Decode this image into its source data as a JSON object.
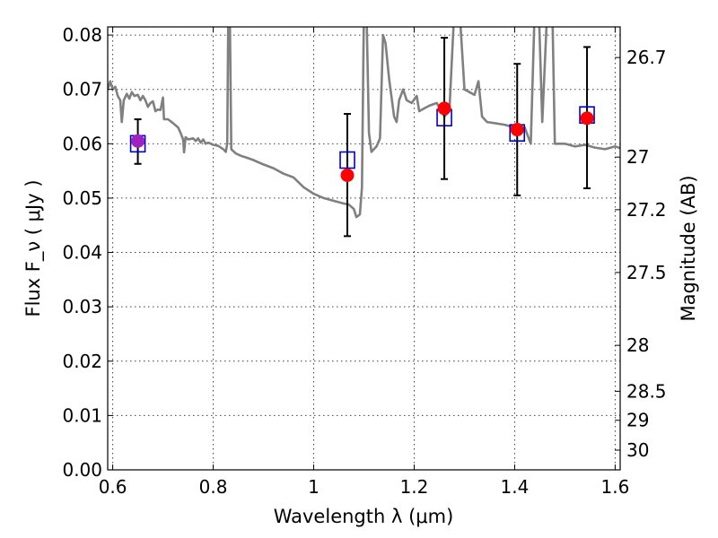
{
  "chart_data": {
    "type": "scatter",
    "title": "",
    "xlabel": "Wavelength λ (μm)",
    "ylabel": "Flux F_ν ( μJy )",
    "y2label": "Magnitude (AB)",
    "xlim": [
      0.59,
      1.61
    ],
    "ylim": [
      0.0,
      0.0815
    ],
    "grid": true,
    "x_ticks": [
      {
        "value": 0.6,
        "label": "0.6"
      },
      {
        "value": 0.8,
        "label": "0.8"
      },
      {
        "value": 1.0,
        "label": "1"
      },
      {
        "value": 1.2,
        "label": "1.2"
      },
      {
        "value": 1.4,
        "label": "1.4"
      },
      {
        "value": 1.6,
        "label": "1.6"
      }
    ],
    "y_ticks": [
      {
        "value": 0.0,
        "label": "0.00"
      },
      {
        "value": 0.01,
        "label": "0.01"
      },
      {
        "value": 0.02,
        "label": "0.02"
      },
      {
        "value": 0.03,
        "label": "0.03"
      },
      {
        "value": 0.04,
        "label": "0.04"
      },
      {
        "value": 0.05,
        "label": "0.05"
      },
      {
        "value": 0.06,
        "label": "0.06"
      },
      {
        "value": 0.07,
        "label": "0.07"
      },
      {
        "value": 0.08,
        "label": "0.08"
      }
    ],
    "mag_ticks": [
      {
        "value": 26.7,
        "label": "26.7"
      },
      {
        "value": 27.0,
        "label": "27"
      },
      {
        "value": 27.2,
        "label": "27.2"
      },
      {
        "value": 27.5,
        "label": "27.5"
      },
      {
        "value": 28.0,
        "label": "28"
      },
      {
        "value": 28.5,
        "label": "28.5"
      },
      {
        "value": 29.0,
        "label": "29"
      },
      {
        "value": 30.0,
        "label": "30"
      }
    ],
    "spectrum": {
      "color": "#808080",
      "points": [
        [
          0.59,
          0.07
        ],
        [
          0.595,
          0.0715
        ],
        [
          0.6,
          0.07
        ],
        [
          0.605,
          0.0705
        ],
        [
          0.61,
          0.0688
        ],
        [
          0.615,
          0.068
        ],
        [
          0.618,
          0.064
        ],
        [
          0.622,
          0.068
        ],
        [
          0.628,
          0.0692
        ],
        [
          0.633,
          0.0683
        ],
        [
          0.638,
          0.0695
        ],
        [
          0.643,
          0.0688
        ],
        [
          0.65,
          0.069
        ],
        [
          0.655,
          0.068
        ],
        [
          0.66,
          0.0688
        ],
        [
          0.665,
          0.068
        ],
        [
          0.67,
          0.0668
        ],
        [
          0.675,
          0.0675
        ],
        [
          0.68,
          0.0678
        ],
        [
          0.685,
          0.066
        ],
        [
          0.69,
          0.0663
        ],
        [
          0.695,
          0.0662
        ],
        [
          0.7,
          0.0685
        ],
        [
          0.702,
          0.0645
        ],
        [
          0.71,
          0.0645
        ],
        [
          0.72,
          0.0638
        ],
        [
          0.73,
          0.063
        ],
        [
          0.735,
          0.062
        ],
        [
          0.74,
          0.0608
        ],
        [
          0.742,
          0.0584
        ],
        [
          0.745,
          0.0612
        ],
        [
          0.75,
          0.0608
        ],
        [
          0.76,
          0.061
        ],
        [
          0.765,
          0.0605
        ],
        [
          0.77,
          0.061
        ],
        [
          0.775,
          0.0602
        ],
        [
          0.78,
          0.0608
        ],
        [
          0.785,
          0.06
        ],
        [
          0.79,
          0.0602
        ],
        [
          0.8,
          0.0598
        ],
        [
          0.81,
          0.0596
        ],
        [
          0.82,
          0.059
        ],
        [
          0.825,
          0.0585
        ],
        [
          0.828,
          0.06
        ],
        [
          0.83,
          0.085
        ],
        [
          0.833,
          0.085
        ],
        [
          0.836,
          0.059
        ],
        [
          0.845,
          0.0582
        ],
        [
          0.855,
          0.0578
        ],
        [
          0.865,
          0.0575
        ],
        [
          0.88,
          0.057
        ],
        [
          0.9,
          0.0562
        ],
        [
          0.92,
          0.0555
        ],
        [
          0.94,
          0.0545
        ],
        [
          0.96,
          0.0538
        ],
        [
          0.98,
          0.052
        ],
        [
          1.0,
          0.0508
        ],
        [
          1.02,
          0.05
        ],
        [
          1.04,
          0.0495
        ],
        [
          1.06,
          0.049
        ],
        [
          1.07,
          0.0488
        ],
        [
          1.08,
          0.048
        ],
        [
          1.085,
          0.0465
        ],
        [
          1.092,
          0.047
        ],
        [
          1.096,
          0.052
        ],
        [
          1.1,
          0.085
        ],
        [
          1.105,
          0.085
        ],
        [
          1.11,
          0.062
        ],
        [
          1.115,
          0.0585
        ],
        [
          1.125,
          0.0595
        ],
        [
          1.132,
          0.061
        ],
        [
          1.138,
          0.08
        ],
        [
          1.143,
          0.0785
        ],
        [
          1.15,
          0.072
        ],
        [
          1.16,
          0.065
        ],
        [
          1.165,
          0.064
        ],
        [
          1.17,
          0.068
        ],
        [
          1.178,
          0.07
        ],
        [
          1.185,
          0.068
        ],
        [
          1.195,
          0.0675
        ],
        [
          1.205,
          0.0688
        ],
        [
          1.21,
          0.066
        ],
        [
          1.22,
          0.0665
        ],
        [
          1.23,
          0.067
        ],
        [
          1.245,
          0.0675
        ],
        [
          1.26,
          0.065
        ],
        [
          1.27,
          0.066
        ],
        [
          1.28,
          0.085
        ],
        [
          1.29,
          0.085
        ],
        [
          1.3,
          0.07
        ],
        [
          1.32,
          0.069
        ],
        [
          1.328,
          0.0715
        ],
        [
          1.335,
          0.065
        ],
        [
          1.345,
          0.064
        ],
        [
          1.36,
          0.0638
        ],
        [
          1.38,
          0.0635
        ],
        [
          1.4,
          0.063
        ],
        [
          1.41,
          0.0625
        ],
        [
          1.42,
          0.063
        ],
        [
          1.432,
          0.06
        ],
        [
          1.44,
          0.085
        ],
        [
          1.448,
          0.085
        ],
        [
          1.455,
          0.064
        ],
        [
          1.465,
          0.085
        ],
        [
          1.475,
          0.085
        ],
        [
          1.48,
          0.06
        ],
        [
          1.5,
          0.06
        ],
        [
          1.52,
          0.0595
        ],
        [
          1.54,
          0.0598
        ],
        [
          1.56,
          0.0593
        ],
        [
          1.58,
          0.059
        ],
        [
          1.6,
          0.0595
        ],
        [
          1.61,
          0.0592
        ]
      ]
    },
    "series": [
      {
        "marker": "square",
        "color": "#0000cc",
        "x": [
          0.65,
          1.067,
          1.26,
          1.405,
          1.544
        ],
        "y": [
          0.06,
          0.057,
          0.0648,
          0.062,
          0.0653
        ]
      },
      {
        "marker": "circle",
        "color": "#ff0000",
        "x": [
          0.65,
          1.067,
          1.26,
          1.405,
          1.544
        ],
        "y": [
          0.0605,
          0.0542,
          0.0665,
          0.0626,
          0.0647
        ],
        "yerr_low": [
          0.0563,
          0.043,
          0.0535,
          0.0505,
          0.0518
        ],
        "yerr_high": [
          0.0645,
          0.0655,
          0.0795,
          0.0747,
          0.0778
        ]
      }
    ],
    "overlap_color": "#a020c0"
  }
}
